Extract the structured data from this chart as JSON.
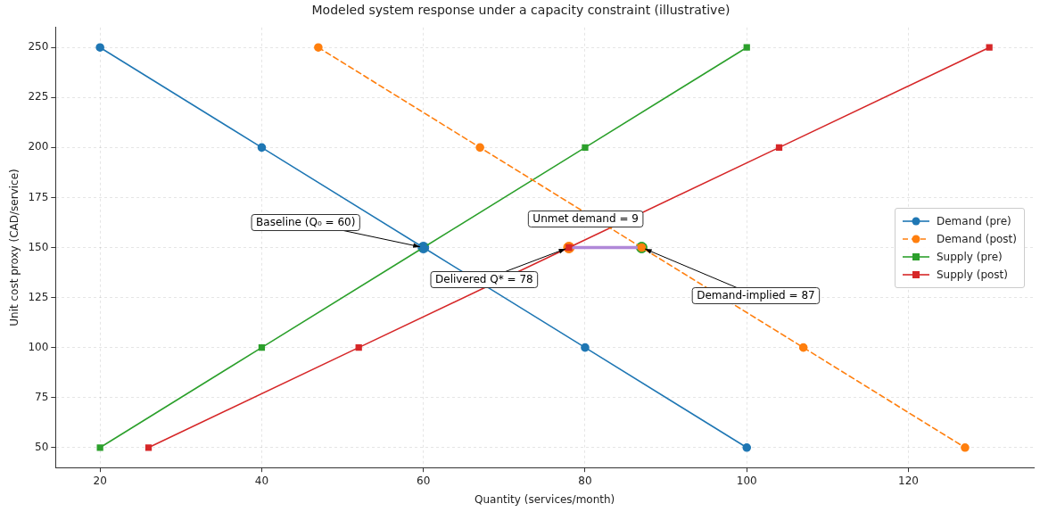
{
  "chart_data": {
    "type": "line",
    "title": "Modeled system response under a capacity constraint (illustrative)",
    "xlabel": "Quantity (services/month)",
    "ylabel": "Unit cost proxy (CAD/service)",
    "xlim": [
      14.5,
      135.5
    ],
    "xticks": [
      20,
      40,
      60,
      80,
      100,
      120
    ],
    "ylim": [
      40,
      260
    ],
    "yticks": [
      50,
      75,
      100,
      125,
      150,
      175,
      200,
      225,
      250
    ],
    "grid": true,
    "legend": "right",
    "series": [
      {
        "name": "Demand (pre)",
        "color": "#1f77b4",
        "marker": "circle",
        "line_style": "solid",
        "x": [
          20,
          40,
          60,
          80,
          100
        ],
        "values": [
          250,
          200,
          150,
          100,
          50
        ]
      },
      {
        "name": "Demand (post)",
        "color": "#ff7f0e",
        "marker": "circle",
        "line_style": "dashed",
        "x": [
          47,
          67,
          87,
          107,
          127
        ],
        "values": [
          250,
          200,
          150,
          100,
          50
        ]
      },
      {
        "name": "Supply (pre)",
        "color": "#2ca02c",
        "marker": "square",
        "line_style": "solid",
        "x": [
          20,
          40,
          60,
          80,
          100
        ],
        "values": [
          50,
          100,
          150,
          200,
          250
        ]
      },
      {
        "name": "Supply (post)",
        "color": "#d62728",
        "marker": "square",
        "line_style": "solid",
        "x": [
          26,
          52,
          78,
          104,
          130
        ],
        "values": [
          50,
          100,
          150,
          200,
          250
        ]
      },
      {
        "type": "line",
        "color": "#b088d8",
        "marker": "none",
        "line_style": "solid",
        "x": [
          78,
          87
        ],
        "values": [
          150,
          150
        ]
      },
      {
        "type": "scatter",
        "color": "#1f77b4",
        "marker": "circle",
        "x": [
          60
        ],
        "values": [
          150
        ]
      },
      {
        "type": "scatter",
        "color": "#ff7f0e",
        "marker": "circle",
        "x": [
          78
        ],
        "values": [
          150
        ]
      },
      {
        "type": "scatter",
        "color": "#2ca02c",
        "marker": "circle",
        "x": [
          87
        ],
        "values": [
          150
        ]
      }
    ],
    "annotations": [
      {
        "text": "Baseline (Q₀ = 60)",
        "x": 60,
        "y": 150
      },
      {
        "text": "Delivered Q* = 78",
        "x": 78,
        "y": 150
      },
      {
        "text": "Demand-implied = 87",
        "x": 87,
        "y": 150
      },
      {
        "text": "Unmet demand = 9",
        "x": 82.5,
        "y": 150
      }
    ]
  }
}
